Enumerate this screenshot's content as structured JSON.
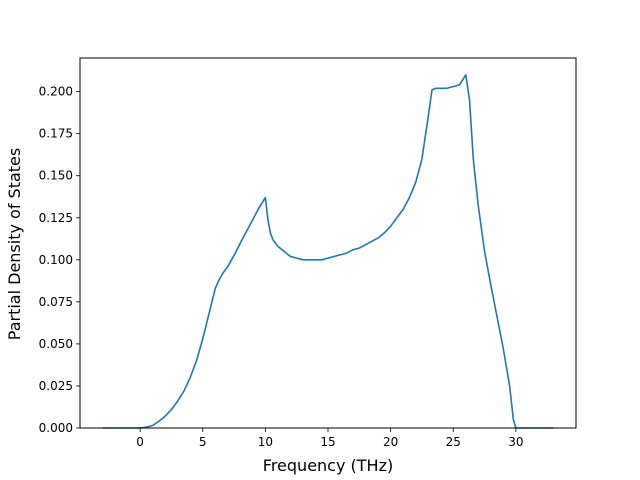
{
  "chart_data": {
    "type": "line",
    "title": "",
    "xlabel": "Frequency (THz)",
    "ylabel": "Partial Density of States",
    "xlim": [
      -4.8,
      34.8
    ],
    "ylim": [
      0.0,
      0.22
    ],
    "xticks": [
      0,
      5,
      10,
      15,
      20,
      25,
      30
    ],
    "yticks": [
      0.0,
      0.025,
      0.05,
      0.075,
      0.1,
      0.125,
      0.15,
      0.175,
      0.2
    ],
    "ytick_labels": [
      "0.000",
      "0.025",
      "0.050",
      "0.075",
      "0.100",
      "0.125",
      "0.150",
      "0.175",
      "0.200"
    ],
    "grid": false,
    "line_color": "#1f77b4",
    "series": [
      {
        "x": [
          -3.0,
          -1.0,
          0.0,
          0.5,
          1.0,
          1.5,
          2.0,
          2.5,
          3.0,
          3.5,
          4.0,
          4.5,
          5.0,
          5.5,
          6.0,
          6.3,
          6.6,
          6.8,
          7.0,
          7.3,
          7.6,
          8.0,
          8.5,
          9.0,
          9.5,
          10.0,
          10.2,
          10.4,
          10.6,
          10.8,
          11.0,
          11.5,
          12.0,
          12.5,
          13.0,
          13.5,
          14.0,
          14.5,
          15.0,
          15.5,
          16.0,
          16.5,
          17.0,
          17.5,
          18.0,
          18.5,
          19.0,
          19.5,
          20.0,
          20.5,
          21.0,
          21.5,
          22.0,
          22.5,
          23.0,
          23.3,
          23.6,
          24.0,
          24.5,
          25.0,
          25.5,
          26.0,
          26.3,
          26.6,
          27.0,
          27.5,
          28.0,
          28.5,
          29.0,
          29.5,
          29.8,
          30.0,
          31.0,
          33.0
        ],
        "y": [
          0.0,
          0.0,
          0.0,
          0.0005,
          0.0015,
          0.004,
          0.007,
          0.011,
          0.016,
          0.022,
          0.03,
          0.04,
          0.053,
          0.068,
          0.083,
          0.088,
          0.092,
          0.094,
          0.096,
          0.1,
          0.104,
          0.11,
          0.117,
          0.124,
          0.131,
          0.137,
          0.124,
          0.116,
          0.112,
          0.11,
          0.108,
          0.105,
          0.102,
          0.101,
          0.1,
          0.1,
          0.1,
          0.1,
          0.101,
          0.102,
          0.103,
          0.104,
          0.106,
          0.107,
          0.109,
          0.111,
          0.113,
          0.116,
          0.12,
          0.125,
          0.13,
          0.137,
          0.146,
          0.16,
          0.185,
          0.201,
          0.202,
          0.202,
          0.202,
          0.203,
          0.204,
          0.21,
          0.195,
          0.16,
          0.132,
          0.105,
          0.085,
          0.066,
          0.047,
          0.025,
          0.005,
          0.0,
          0.0,
          0.0
        ]
      }
    ]
  }
}
